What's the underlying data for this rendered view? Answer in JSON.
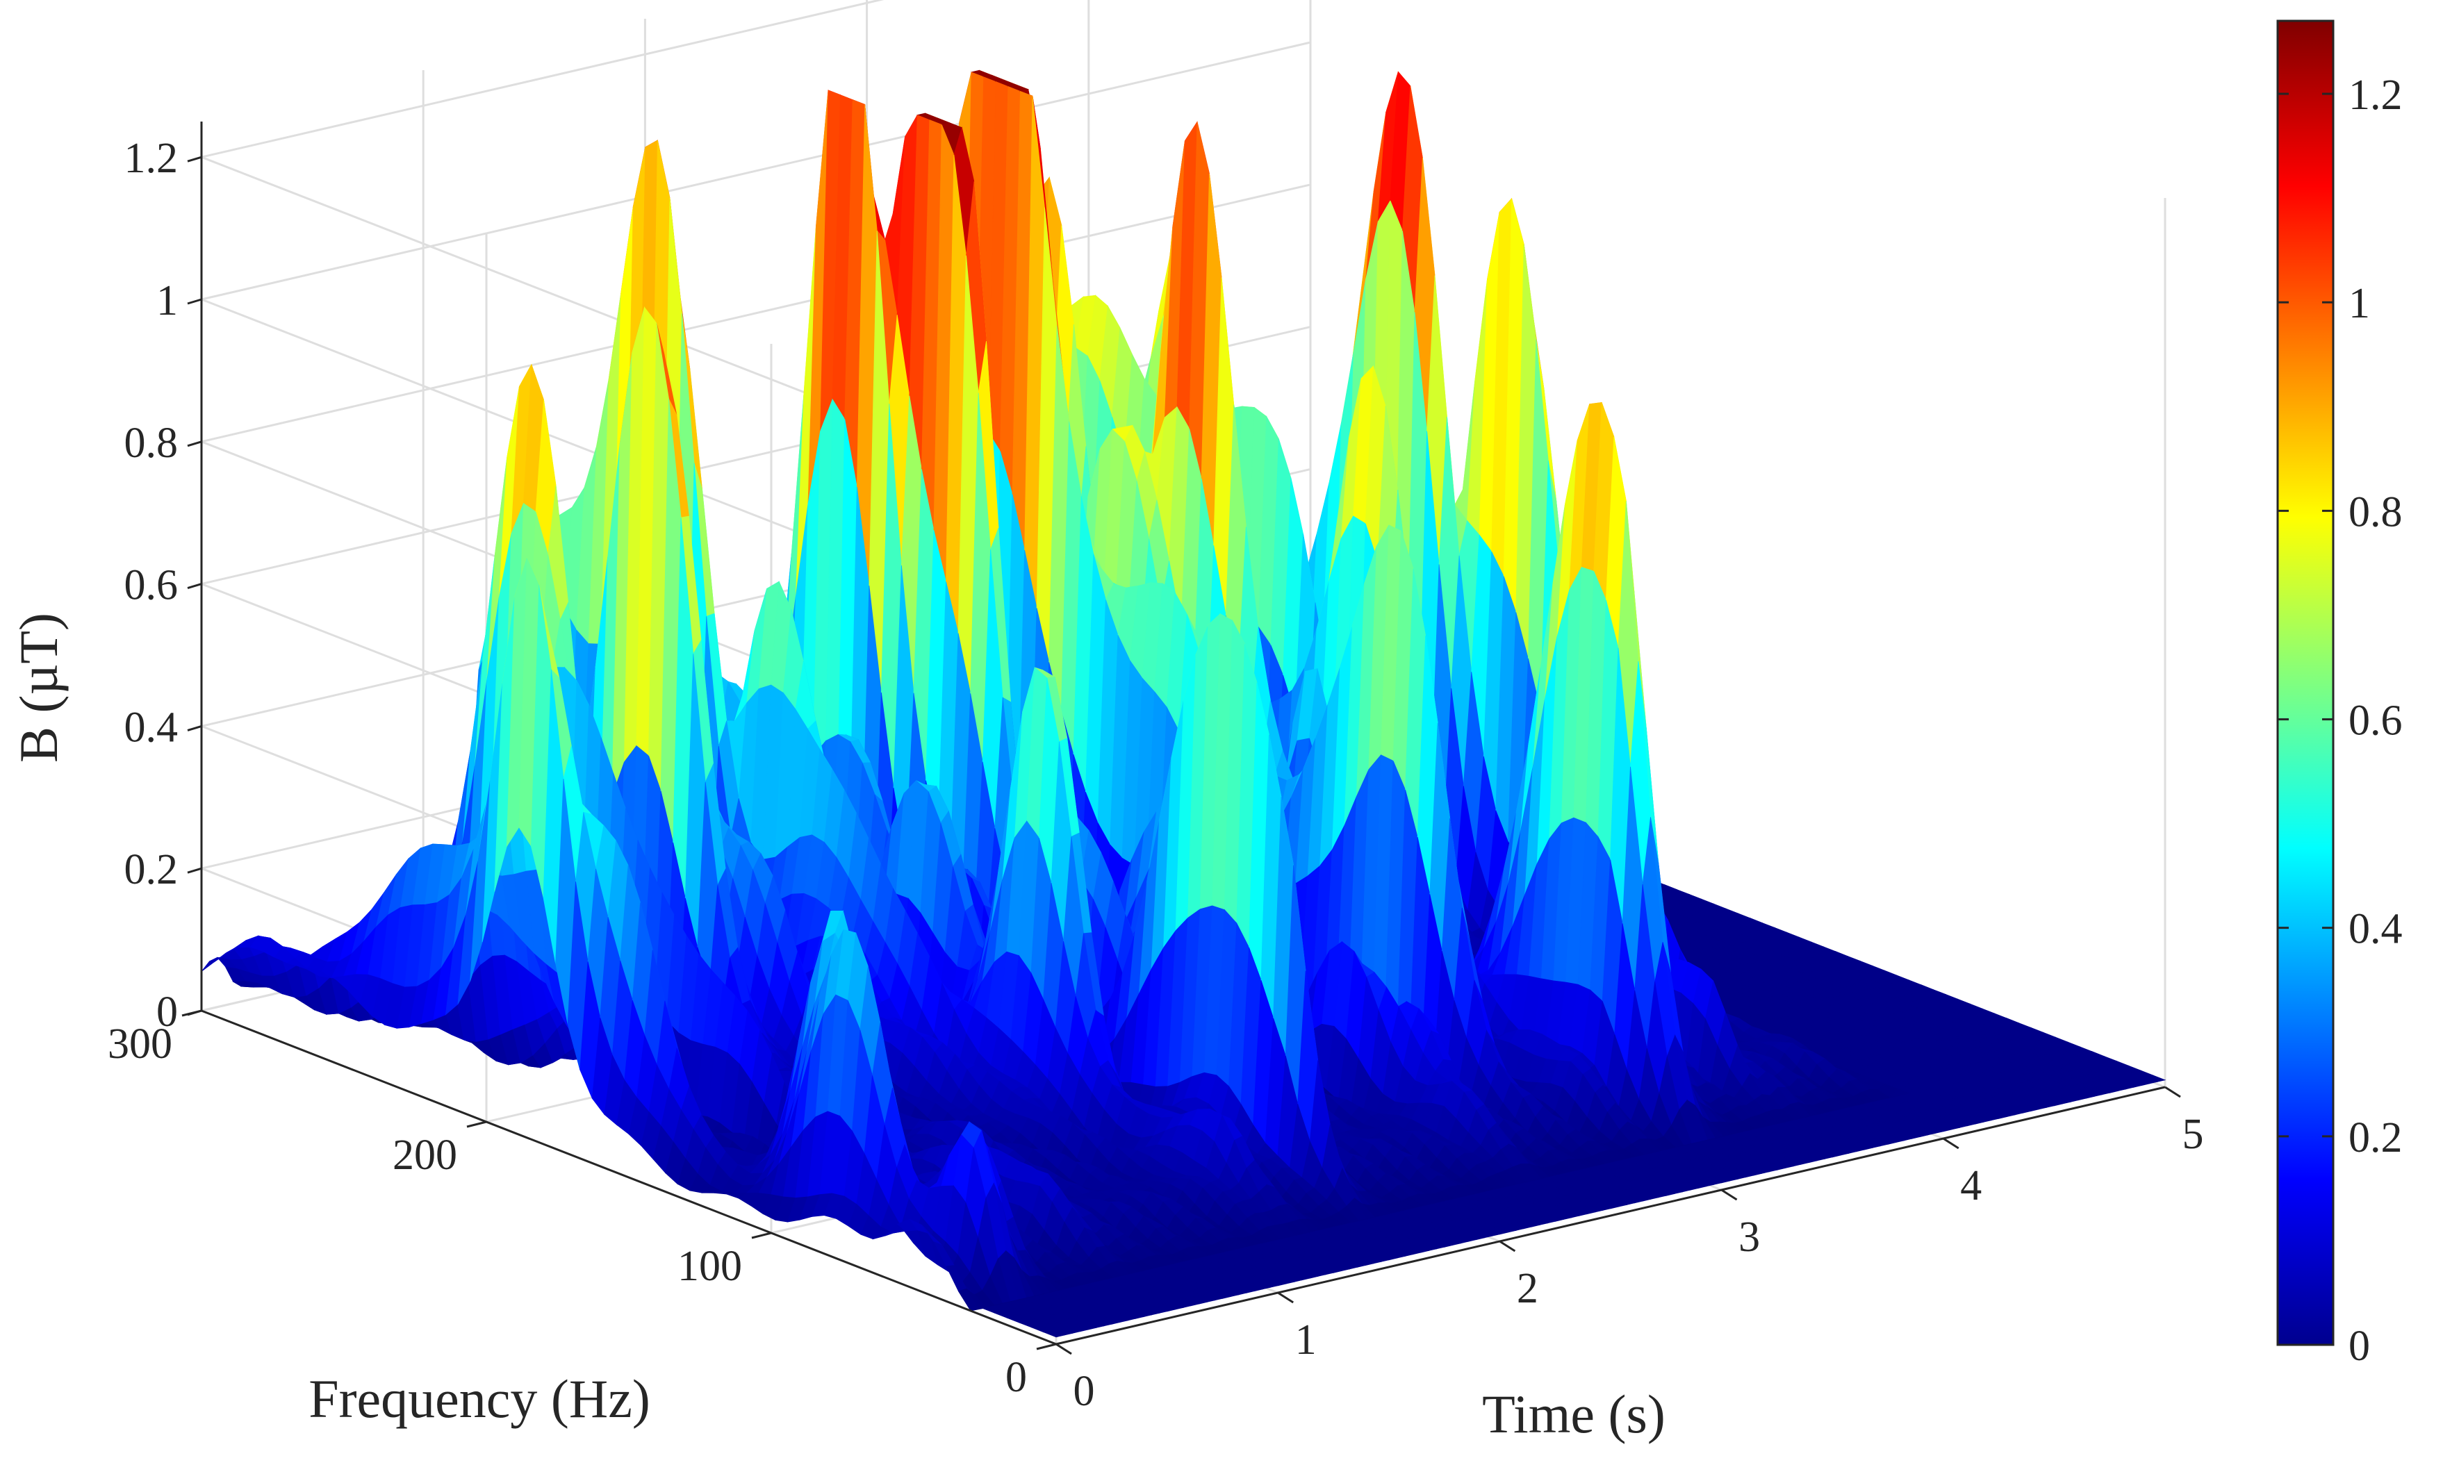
{
  "chart_data": {
    "type": "surface",
    "title": "",
    "xlabel": "Time (s)",
    "ylabel": "Frequency (Hz)",
    "zlabel": "B (µT)",
    "xlim": [
      0,
      5
    ],
    "ylim": [
      0,
      300
    ],
    "zlim": [
      0,
      1.25
    ],
    "x_ticks": [
      "0",
      "1",
      "2",
      "3",
      "4",
      "5"
    ],
    "y_ticks": [
      "0",
      "100",
      "200",
      "300"
    ],
    "z_ticks": [
      "0",
      "0.2",
      "0.4",
      "0.6",
      "0.8",
      "1",
      "1.2"
    ],
    "colorbar": {
      "colormap": "jet",
      "range": [
        0,
        1.27
      ],
      "ticks": [
        "0",
        "0.2",
        "0.4",
        "0.6",
        "0.8",
        "1",
        "1.2"
      ]
    },
    "grid": true,
    "signal_time_range": [
      0,
      4.1
    ],
    "peaks": [
      {
        "t": 0.6,
        "f": 230,
        "b": 0.85
      },
      {
        "t": 0.8,
        "f": 205,
        "b": 1.05
      },
      {
        "t": 1.3,
        "f": 240,
        "b": 1.18
      },
      {
        "t": 2.0,
        "f": 230,
        "b": 1.25
      },
      {
        "t": 2.1,
        "f": 205,
        "b": 0.95
      },
      {
        "t": 2.55,
        "f": 220,
        "b": 0.93
      },
      {
        "t": 2.9,
        "f": 175,
        "b": 0.75
      },
      {
        "t": 3.1,
        "f": 245,
        "b": 1.0
      },
      {
        "t": 3.35,
        "f": 150,
        "b": 0.82
      },
      {
        "t": 3.95,
        "f": 190,
        "b": 1.06
      },
      {
        "t": 4.05,
        "f": 155,
        "b": 0.9
      }
    ]
  }
}
